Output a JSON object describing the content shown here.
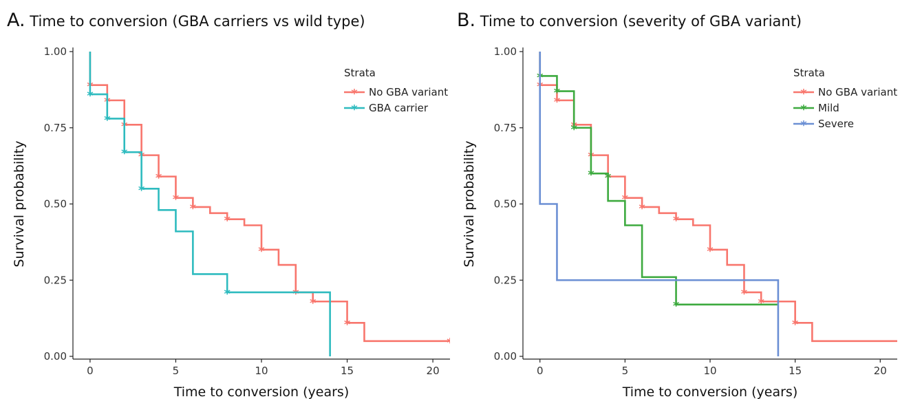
{
  "chart_data": [
    {
      "type": "line",
      "panel_letter": "A.",
      "title": "Time to conversion (GBA carriers vs wild type)",
      "xlabel": "Time to conversion (years)",
      "ylabel": "Survival probability",
      "xlim": [
        -1,
        21
      ],
      "ylim": [
        0,
        1
      ],
      "xticks": [
        0,
        5,
        10,
        15,
        20
      ],
      "xtick_labels": [
        "0",
        "5",
        "10",
        "15",
        "20"
      ],
      "yticks": [
        0,
        0.25,
        0.5,
        0.75,
        1
      ],
      "ytick_labels": [
        "0.00",
        "0.25",
        "0.50",
        "0.75",
        "1.00"
      ],
      "grid": false,
      "legend_title": "Strata",
      "legend_position": "top-right",
      "series": [
        {
          "name": "No GBA variant",
          "color": "#F8766D",
          "step_x": [
            0,
            0,
            1,
            2,
            3,
            4,
            5,
            6,
            7,
            8,
            9,
            10,
            11,
            12,
            13,
            15,
            16,
            21
          ],
          "step_y": [
            1.0,
            0.89,
            0.84,
            0.76,
            0.66,
            0.59,
            0.52,
            0.49,
            0.47,
            0.45,
            0.43,
            0.35,
            0.3,
            0.21,
            0.18,
            0.11,
            0.05,
            0.05
          ],
          "censor_x": [
            0,
            1,
            2,
            3,
            4,
            5,
            6,
            8,
            10,
            12,
            13,
            15,
            21
          ],
          "censor_y": [
            0.89,
            0.84,
            0.76,
            0.66,
            0.59,
            0.52,
            0.49,
            0.45,
            0.35,
            0.21,
            0.18,
            0.11,
            0.05
          ]
        },
        {
          "name": "GBA carrier",
          "color": "#2EBBBF",
          "step_x": [
            0,
            0,
            1,
            2,
            3,
            4,
            5,
            6,
            8,
            14,
            14
          ],
          "step_y": [
            1.0,
            0.86,
            0.78,
            0.67,
            0.55,
            0.48,
            0.41,
            0.27,
            0.21,
            0.21,
            0.0
          ],
          "censor_x": [
            0,
            1,
            2,
            3,
            8
          ],
          "censor_y": [
            0.86,
            0.78,
            0.67,
            0.55,
            0.21
          ]
        }
      ]
    },
    {
      "type": "line",
      "panel_letter": "B.",
      "title": "Time to conversion (severity of GBA variant)",
      "xlabel": "Time to conversion (years)",
      "ylabel": "Survival probability",
      "xlim": [
        -1,
        21
      ],
      "ylim": [
        0,
        1
      ],
      "xticks": [
        0,
        5,
        10,
        15,
        20
      ],
      "xtick_labels": [
        "0",
        "5",
        "10",
        "15",
        "20"
      ],
      "yticks": [
        0,
        0.25,
        0.5,
        0.75,
        1
      ],
      "ytick_labels": [
        "0.00",
        "0.25",
        "0.50",
        "0.75",
        "1.00"
      ],
      "grid": false,
      "legend_title": "Strata",
      "legend_position": "top-right",
      "series": [
        {
          "name": "No GBA variant",
          "color": "#F8766D",
          "step_x": [
            0,
            0,
            1,
            2,
            3,
            4,
            5,
            6,
            7,
            8,
            9,
            10,
            11,
            12,
            13,
            15,
            16,
            21
          ],
          "step_y": [
            1.0,
            0.89,
            0.84,
            0.76,
            0.66,
            0.59,
            0.52,
            0.49,
            0.47,
            0.45,
            0.43,
            0.35,
            0.3,
            0.21,
            0.18,
            0.11,
            0.05,
            0.05
          ],
          "censor_x": [
            0,
            1,
            2,
            3,
            4,
            5,
            6,
            8,
            10,
            12,
            13,
            15
          ],
          "censor_y": [
            0.89,
            0.84,
            0.76,
            0.66,
            0.59,
            0.52,
            0.49,
            0.45,
            0.35,
            0.21,
            0.18,
            0.11
          ]
        },
        {
          "name": "Mild",
          "color": "#3DAA3F",
          "step_x": [
            0,
            0,
            1,
            2,
            3,
            4,
            5,
            6,
            8,
            14
          ],
          "step_y": [
            1.0,
            0.92,
            0.87,
            0.75,
            0.6,
            0.51,
            0.43,
            0.26,
            0.17,
            0.17
          ],
          "censor_x": [
            0,
            1,
            2,
            3,
            4,
            8
          ],
          "censor_y": [
            0.92,
            0.87,
            0.75,
            0.6,
            0.59,
            0.17
          ]
        },
        {
          "name": "Severe",
          "color": "#6B8FD4",
          "step_x": [
            0,
            0,
            1,
            14,
            14
          ],
          "step_y": [
            1.0,
            0.5,
            0.25,
            0.25,
            0.0
          ],
          "censor_x": [],
          "censor_y": []
        }
      ]
    }
  ]
}
